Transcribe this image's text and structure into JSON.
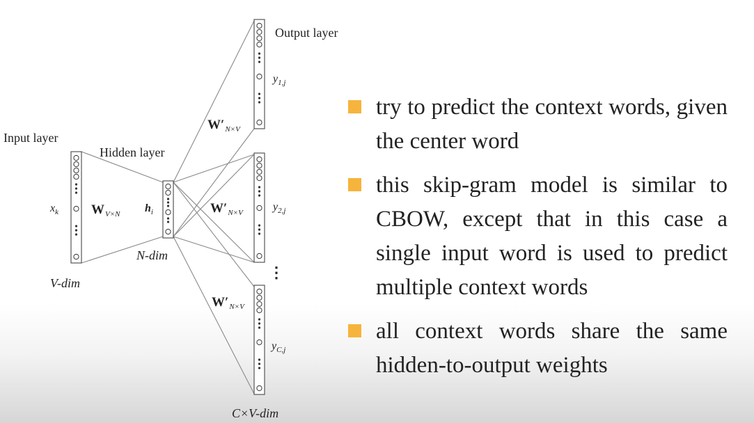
{
  "diagram": {
    "input_layer_label": "Input layer",
    "hidden_layer_label": "Hidden layer",
    "output_layer_label": "Output layer",
    "input_var": "x",
    "input_var_sub": "k",
    "hidden_var": "h",
    "hidden_var_sub": "i",
    "input_dim_label": "V-dim",
    "hidden_dim_label": "N-dim",
    "output_dim_label": "C×V-dim",
    "input_weight": {
      "symbol": "W",
      "sub": "V×N"
    },
    "output_weights": [
      {
        "symbol": "W′",
        "sub": "N×V"
      },
      {
        "symbol": "W′",
        "sub": "N×V"
      },
      {
        "symbol": "W′",
        "sub": "N×V"
      }
    ],
    "outputs": [
      {
        "var": "y",
        "sub": "1,j"
      },
      {
        "var": "y",
        "sub": "2,j"
      },
      {
        "var": "y",
        "sub": "C,j"
      }
    ],
    "ellipsis": "⋮"
  },
  "bullets": [
    {
      "text": "try to predict the context words, given the center word"
    },
    {
      "text": "this skip-gram model is similar to CBOW, except that in this case a single input word is used to predict multiple context words"
    },
    {
      "text": "all context words share the same hidden-to-output weights"
    }
  ],
  "colors": {
    "bullet_marker": "#f6b43c",
    "line": "#888888",
    "text": "#222222"
  }
}
